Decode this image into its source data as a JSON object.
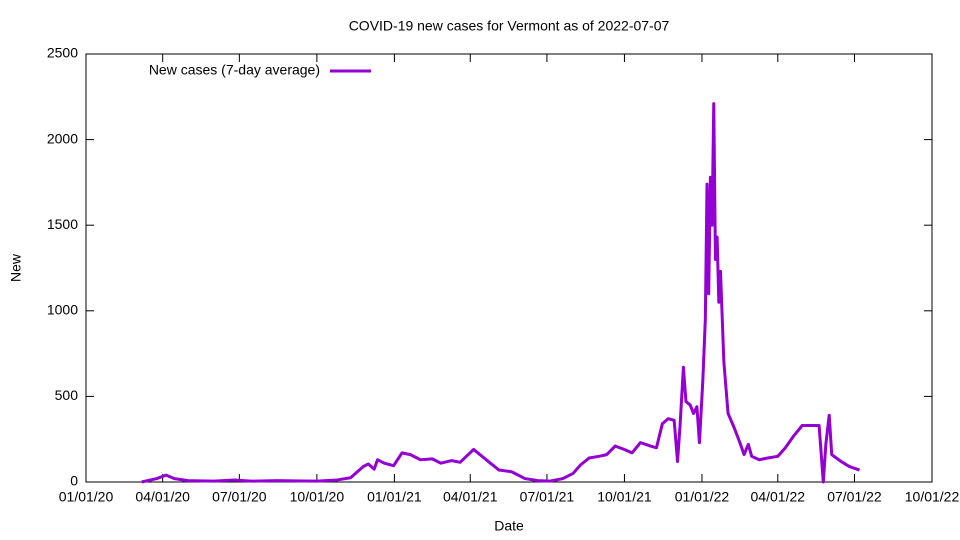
{
  "chart_data": {
    "type": "line",
    "title": "COVID-19 new cases for Vermont as of 2022-07-07",
    "x_label": "Date",
    "y_label": "New",
    "x": [
      "2020-03-07",
      "2020-03-25",
      "2020-04-05",
      "2020-04-15",
      "2020-05-01",
      "2020-06-01",
      "2020-06-25",
      "2020-07-15",
      "2020-08-15",
      "2020-09-15",
      "2020-10-01",
      "2020-10-25",
      "2020-11-10",
      "2020-11-25",
      "2020-12-01",
      "2020-12-08",
      "2020-12-12",
      "2020-12-20",
      "2020-12-31",
      "2021-01-10",
      "2021-01-20",
      "2021-02-01",
      "2021-02-15",
      "2021-02-25",
      "2021-03-10",
      "2021-03-20",
      "2021-04-05",
      "2021-04-15",
      "2021-04-25",
      "2021-05-05",
      "2021-05-20",
      "2021-06-05",
      "2021-06-20",
      "2021-07-05",
      "2021-07-20",
      "2021-08-01",
      "2021-08-10",
      "2021-08-20",
      "2021-09-01",
      "2021-09-10",
      "2021-09-20",
      "2021-10-01",
      "2021-10-10",
      "2021-10-20",
      "2021-11-01",
      "2021-11-08",
      "2021-11-15",
      "2021-11-22",
      "2021-11-29",
      "2021-12-03",
      "2021-12-06",
      "2021-12-10",
      "2021-12-13",
      "2021-12-18",
      "2021-12-22",
      "2021-12-26",
      "2021-12-29",
      "2022-01-02",
      "2022-01-05",
      "2022-01-07",
      "2022-01-09",
      "2022-01-11",
      "2022-01-13",
      "2022-01-15",
      "2022-01-17",
      "2022-01-19",
      "2022-01-21",
      "2022-01-23",
      "2022-01-27",
      "2022-02-01",
      "2022-02-08",
      "2022-02-15",
      "2022-02-20",
      "2022-02-25",
      "2022-03-01",
      "2022-03-10",
      "2022-03-20",
      "2022-04-01",
      "2022-04-10",
      "2022-04-20",
      "2022-04-30",
      "2022-05-10",
      "2022-05-20",
      "2022-05-25",
      "2022-05-28",
      "2022-06-01",
      "2022-06-04",
      "2022-06-15",
      "2022-06-25",
      "2022-07-07"
    ],
    "series": [
      {
        "name": "New cases (7-day average)",
        "color": "#9400d3",
        "values": [
          0,
          20,
          40,
          20,
          8,
          5,
          12,
          5,
          8,
          6,
          5,
          12,
          25,
          90,
          105,
          75,
          130,
          110,
          95,
          170,
          160,
          130,
          135,
          110,
          125,
          115,
          190,
          150,
          110,
          70,
          60,
          20,
          8,
          5,
          20,
          50,
          100,
          140,
          150,
          160,
          210,
          190,
          170,
          230,
          210,
          200,
          340,
          370,
          360,
          120,
          330,
          670,
          470,
          450,
          400,
          440,
          230,
          590,
          950,
          1740,
          1100,
          1780,
          1500,
          2210,
          1300,
          1430,
          1050,
          1230,
          700,
          400,
          320,
          230,
          160,
          220,
          150,
          130,
          140,
          150,
          200,
          270,
          330,
          330,
          330,
          0,
          220,
          390,
          160,
          120,
          90,
          70
        ]
      }
    ],
    "xlim": [
      "2020-01-01",
      "2022-10-01"
    ],
    "xticks": [
      {
        "value": "2020-01-01",
        "label": "01/01/20"
      },
      {
        "value": "2020-04-01",
        "label": "04/01/20"
      },
      {
        "value": "2020-07-01",
        "label": "07/01/20"
      },
      {
        "value": "2020-10-01",
        "label": "10/01/20"
      },
      {
        "value": "2021-01-01",
        "label": "01/01/21"
      },
      {
        "value": "2021-04-01",
        "label": "04/01/21"
      },
      {
        "value": "2021-07-01",
        "label": "07/01/21"
      },
      {
        "value": "2021-10-01",
        "label": "10/01/21"
      },
      {
        "value": "2022-01-01",
        "label": "01/01/22"
      },
      {
        "value": "2022-04-01",
        "label": "04/01/22"
      },
      {
        "value": "2022-07-01",
        "label": "07/01/22"
      },
      {
        "value": "2022-10-01",
        "label": "10/01/22"
      }
    ],
    "ylim": [
      0,
      2500
    ],
    "yticks": [
      0,
      500,
      1000,
      1500,
      2000,
      2500
    ],
    "grid": false,
    "legend": "top-left"
  }
}
